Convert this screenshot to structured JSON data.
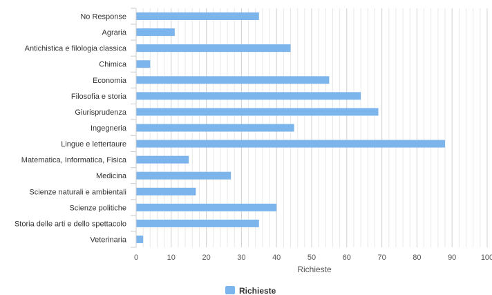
{
  "chart_data": {
    "type": "bar",
    "orientation": "horizontal",
    "categories": [
      "No Response",
      "Agraria",
      "Antichistica e filologia classica",
      "Chimica",
      "Economia",
      "Filosofia e storia",
      "Giurisprudenza",
      "Ingegneria",
      "Lingue e lettertaure",
      "Matematica, Informatica, Fisica",
      "Medicina",
      "Scienze naturali e ambientali",
      "Scienze politiche",
      "Storia delle arti e dello spettacolo",
      "Veterinaria"
    ],
    "series": [
      {
        "name": "Richieste",
        "color": "#7cb5ec",
        "values": [
          35,
          11,
          44,
          4,
          55,
          64,
          69,
          45,
          88,
          15,
          27,
          17,
          40,
          35,
          2
        ]
      }
    ],
    "xlabel": "Richieste",
    "ylabel": "",
    "xlim": [
      0,
      100
    ],
    "xticks": [
      0,
      10,
      20,
      30,
      40,
      50,
      60,
      70,
      80,
      90,
      100
    ],
    "grid": true,
    "legend": "bottom-center"
  }
}
